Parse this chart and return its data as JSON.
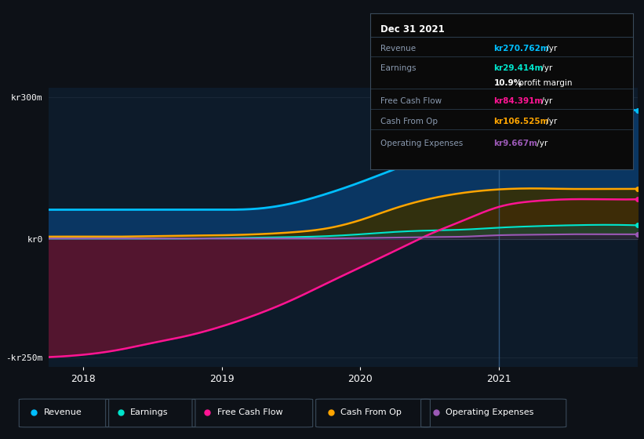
{
  "bg_color": "#0d1117",
  "plot_bg_color": "#0d1b2a",
  "revenue_color": "#00bfff",
  "earnings_color": "#00e5cc",
  "free_cash_flow_color": "#ff1493",
  "cash_from_op_color": "#ffa500",
  "operating_expenses_color": "#9b59b6",
  "fill_revenue_alpha": 0.85,
  "fill_fcf_alpha": 0.9,
  "fill_cashop_alpha": 0.7,
  "fill_earnings_alpha": 0.6,
  "fill_opex_alpha": 0.5,
  "ylim_min": -270,
  "ylim_max": 320,
  "ytick_labels": [
    "-kr250m",
    "kr0",
    "kr300m"
  ],
  "ytick_values": [
    -250,
    0,
    300
  ],
  "xlabel_years": [
    2018,
    2019,
    2020,
    2021
  ],
  "legend_items": [
    "Revenue",
    "Earnings",
    "Free Cash Flow",
    "Cash From Op",
    "Operating Expenses"
  ],
  "legend_colors": [
    "#00bfff",
    "#00e5cc",
    "#ff1493",
    "#ffa500",
    "#9b59b6"
  ],
  "table_title": "Dec 31 2021",
  "table_rows": [
    [
      "Revenue",
      "kr270.762m",
      " /yr",
      "#00bfff"
    ],
    [
      "Earnings",
      "kr29.414m",
      " /yr",
      "#00e5cc"
    ],
    [
      "",
      "10.9%",
      " profit margin",
      "#ffffff"
    ],
    [
      "Free Cash Flow",
      "kr84.391m",
      " /yr",
      "#ff1493"
    ],
    [
      "Cash From Op",
      "kr106.525m",
      " /yr",
      "#ffa500"
    ],
    [
      "Operating Expenses",
      "kr9.667m",
      " /yr",
      "#9b59b6"
    ]
  ],
  "vline_x": 2021.0,
  "gridline_color": "#2a3a4a",
  "text_color": "#8a9ab0",
  "xstart": 2017.75,
  "xend": 2022.0
}
